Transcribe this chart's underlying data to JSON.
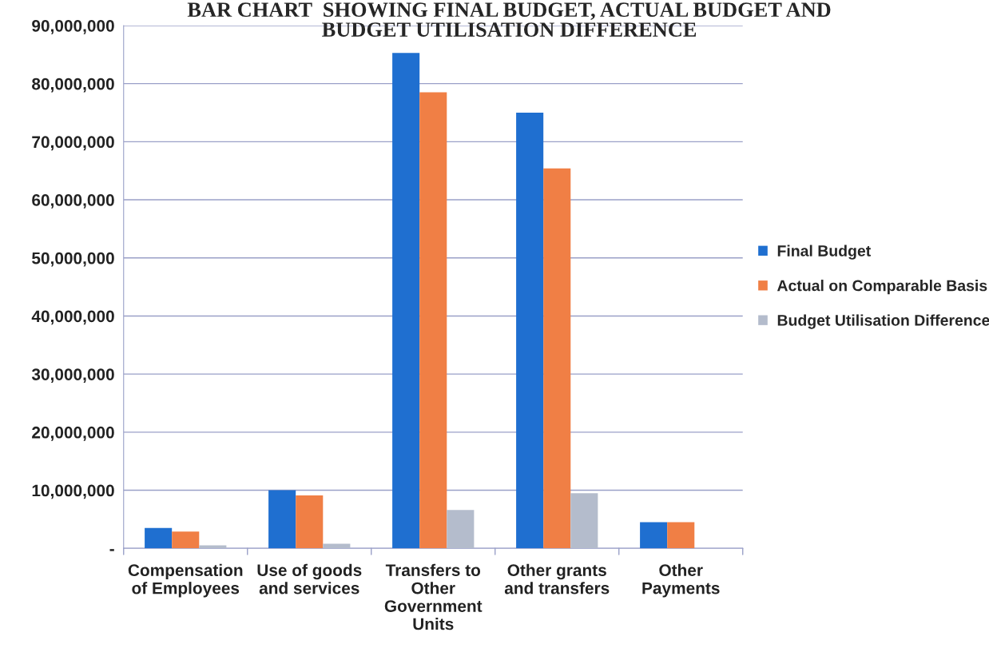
{
  "chart_data": {
    "type": "bar",
    "title": "BAR CHART  SHOWING FINAL BUDGET, ACTUAL BUDGET AND BUDGET UTILISATION DIFFERENCE",
    "categories": [
      "Compensation of Employees",
      "Use of goods and services",
      "Transfers to Other Government Units",
      "Other grants and transfers",
      "Other Payments"
    ],
    "series": [
      {
        "name": "Final Budget",
        "color": "#1f6fd0",
        "values": [
          3500000,
          10000000,
          85300000,
          75000000,
          4500000
        ]
      },
      {
        "name": "Actual on Comparable Basis",
        "color": "#f07f45",
        "values": [
          2900000,
          9100000,
          78500000,
          65400000,
          4500000
        ]
      },
      {
        "name": "Budget Utilisation Difference",
        "color": "#b4bccc",
        "values": [
          500000,
          800000,
          6600000,
          9500000,
          null
        ]
      }
    ],
    "ylim": [
      0,
      90000000
    ],
    "yticks": [
      {
        "value": 0,
        "label": "-"
      },
      {
        "value": 10000000,
        "label": "10,000,000"
      },
      {
        "value": 20000000,
        "label": "20,000,000"
      },
      {
        "value": 30000000,
        "label": "30,000,000"
      },
      {
        "value": 40000000,
        "label": "40,000,000"
      },
      {
        "value": 50000000,
        "label": "50,000,000"
      },
      {
        "value": 60000000,
        "label": "60,000,000"
      },
      {
        "value": 70000000,
        "label": "70,000,000"
      },
      {
        "value": 80000000,
        "label": "80,000,000"
      },
      {
        "value": 90000000,
        "label": "90,000,000"
      }
    ],
    "grid": "y",
    "legend": "right"
  }
}
